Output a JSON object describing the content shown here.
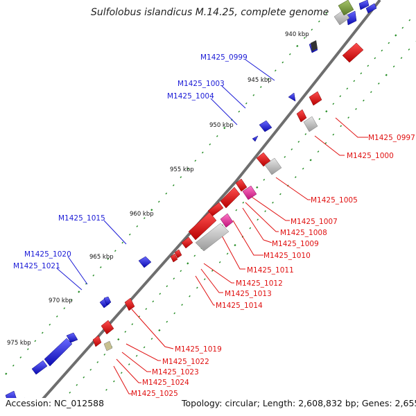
{
  "title": "Sulfolobus islandicus M.14.25, complete genome",
  "accession": "Accession: NC_012588",
  "topology": "Topology: circular; Length: 2,608,832 bp; Genes: 2,655",
  "colors": {
    "forward": "#1a1ad6",
    "reverse": "#e01010",
    "rna": "#ee2b9b",
    "pseudo": "#bdbdbd",
    "other": "#b6b07a",
    "backbone": "#6e6e6e",
    "tick": "#228b22"
  },
  "kbp_labels": [
    "940 kbp",
    "945 kbp",
    "950 kbp",
    "955 kbp",
    "960 kbp",
    "965 kbp",
    "970 kbp",
    "975 kbp"
  ],
  "gene_labels": {
    "left": [
      "M1425_0999",
      "M1425_1003",
      "M1425_1004",
      "M1425_1015",
      "M1425_1020",
      "M1425_1021"
    ],
    "right": [
      "M1425_0997",
      "M1425_1000",
      "M1425_1005",
      "M1425_1007",
      "M1425_1008",
      "M1425_1009",
      "M1425_1010",
      "M1425_1011",
      "M1425_1012",
      "M1425_1013",
      "M1425_1014",
      "M1425_1019",
      "M1425_1022",
      "M1425_1023",
      "M1425_1024",
      "M1425_1025"
    ]
  }
}
